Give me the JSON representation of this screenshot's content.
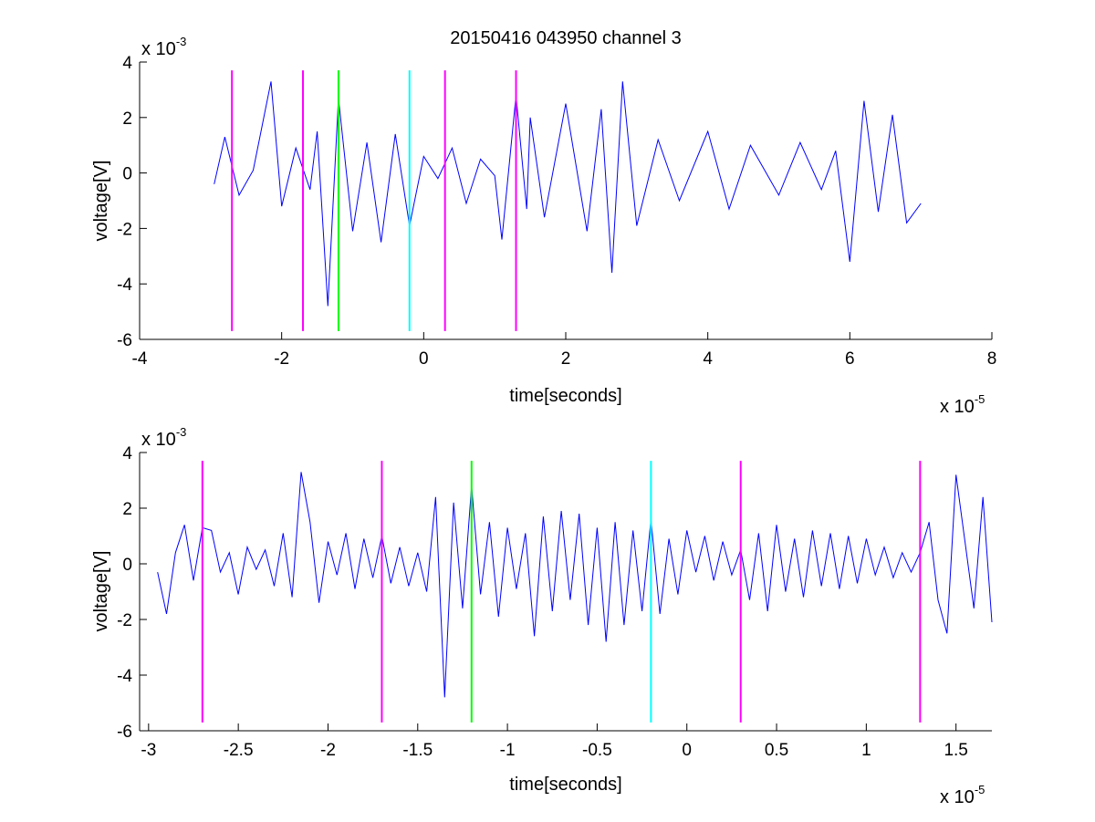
{
  "figure": {
    "title": "20150416 043950 channel 3",
    "signal_color": "#0000ff",
    "marker_colors": {
      "magenta": "#ff00ff",
      "green": "#00ff00",
      "cyan": "#00ffff"
    }
  },
  "chart_data": [
    {
      "type": "line",
      "title": "20150416 043950 channel 3",
      "xlabel": "time[seconds]",
      "ylabel": "voltage[V]",
      "xlim": [
        -4e-05,
        8e-05
      ],
      "ylim": [
        -0.006,
        0.004
      ],
      "x_ticks": [
        -4e-05,
        -2e-05,
        0,
        2e-05,
        4e-05,
        6e-05,
        8e-05
      ],
      "x_tick_labels": [
        "-4",
        "-2",
        "0",
        "2",
        "4",
        "6",
        "8"
      ],
      "y_ticks": [
        -0.006,
        -0.004,
        -0.002,
        0,
        0.002,
        0.004
      ],
      "y_tick_labels": [
        "-6",
        "-4",
        "-2",
        "0",
        "2",
        "4"
      ],
      "x_exponent": {
        "base": "x 10",
        "power": "-5"
      },
      "y_exponent": {
        "base": "x 10",
        "power": "-3"
      },
      "grid": false,
      "series": [
        {
          "color": "#0000ff",
          "x": [
            -2.95e-05,
            -2.8e-05,
            -2.6e-05,
            -2.4e-05,
            -2.15e-05,
            -2e-05,
            -1.8e-05,
            -1.6e-05,
            -1.5e-05,
            -1.35e-05,
            -1.2e-05,
            -1e-05,
            -8e-06,
            -6e-06,
            -4e-06,
            -2e-06,
            0,
            2e-06,
            4e-06,
            6e-06,
            8e-06,
            1e-05,
            1.1e-05,
            1.3e-05,
            1.45e-05,
            1.5e-05,
            1.7e-05,
            2e-05,
            2.3e-05,
            2.5e-05,
            2.65e-05,
            2.8e-05,
            3e-05,
            3.3e-05,
            3.6e-05,
            4e-05,
            4.3e-05,
            4.6e-05,
            5e-05,
            5.3e-05,
            5.6e-05,
            5.8e-05,
            6e-05,
            6.2e-05,
            6.4e-05,
            6.6e-05,
            6.8e-05,
            7e-05
          ],
          "y": [
            -0.0004,
            0.0013,
            -0.0008,
            0.0001,
            0.0033,
            -0.0012,
            0.0009,
            -0.0006,
            0.0015,
            -0.0048,
            0.0027,
            -0.0021,
            0.0011,
            -0.0025,
            0.0014,
            -0.0019,
            0.0006,
            -0.0002,
            0.0009,
            -0.0011,
            0.0005,
            -0.0001,
            -0.0024,
            0.0028,
            -0.0013,
            0.002,
            -0.0016,
            0.0025,
            -0.0021,
            0.0023,
            -0.0036,
            0.0033,
            -0.0019,
            0.0012,
            -0.001,
            0.0015,
            -0.0013,
            0.001,
            -0.0008,
            0.0011,
            -0.0006,
            0.0008,
            -0.0032,
            0.0026,
            -0.0014,
            0.0021,
            -0.0018,
            -0.0011
          ]
        }
      ],
      "vertical_markers": [
        {
          "x": -2.7e-05,
          "color": "#ff00ff"
        },
        {
          "x": -1.7e-05,
          "color": "#ff00ff"
        },
        {
          "x": -1.2e-05,
          "color": "#00ff00"
        },
        {
          "x": -2e-06,
          "color": "#00ffff"
        },
        {
          "x": 3e-06,
          "color": "#ff00ff"
        },
        {
          "x": 1.3e-05,
          "color": "#ff00ff"
        }
      ],
      "marker_span": [
        -0.0057,
        0.0037
      ]
    },
    {
      "type": "line",
      "title": "",
      "xlabel": "time[seconds]",
      "ylabel": "voltage[V]",
      "xlim": [
        -3.05e-05,
        1.7e-05
      ],
      "ylim": [
        -0.006,
        0.004
      ],
      "x_ticks": [
        -3e-05,
        -2.5e-05,
        -2e-05,
        -1.5e-05,
        -1e-05,
        -5e-06,
        0,
        5e-06,
        1e-05,
        1.5e-05
      ],
      "x_tick_labels": [
        "-3",
        "-2.5",
        "-2",
        "-1.5",
        "-1",
        "-0.5",
        "0",
        "0.5",
        "1",
        "1.5"
      ],
      "y_ticks": [
        -0.006,
        -0.004,
        -0.002,
        0,
        0.002,
        0.004
      ],
      "y_tick_labels": [
        "-6",
        "-4",
        "-2",
        "0",
        "2",
        "4"
      ],
      "x_exponent": {
        "base": "x 10",
        "power": "-5"
      },
      "y_exponent": {
        "base": "x 10",
        "power": "-3"
      },
      "grid": false,
      "series": [
        {
          "color": "#0000ff",
          "x": [
            -2.95e-05,
            -2.9e-05,
            -2.85e-05,
            -2.8e-05,
            -2.75e-05,
            -2.7e-05,
            -2.65e-05,
            -2.6e-05,
            -2.55e-05,
            -2.5e-05,
            -2.45e-05,
            -2.4e-05,
            -2.35e-05,
            -2.3e-05,
            -2.25e-05,
            -2.2e-05,
            -2.15e-05,
            -2.1e-05,
            -2.05e-05,
            -2e-05,
            -1.95e-05,
            -1.9e-05,
            -1.85e-05,
            -1.8e-05,
            -1.75e-05,
            -1.7e-05,
            -1.65e-05,
            -1.6e-05,
            -1.55e-05,
            -1.5e-05,
            -1.45e-05,
            -1.4e-05,
            -1.35e-05,
            -1.3e-05,
            -1.25e-05,
            -1.2e-05,
            -1.15e-05,
            -1.1e-05,
            -1.05e-05,
            -1e-05,
            -9.5e-06,
            -9e-06,
            -8.5e-06,
            -8e-06,
            -7.5e-06,
            -7e-06,
            -6.5e-06,
            -6e-06,
            -5.5e-06,
            -5e-06,
            -4.5e-06,
            -4e-06,
            -3.5e-06,
            -3e-06,
            -2.5e-06,
            -2e-06,
            -1.5e-06,
            -1e-06,
            -5e-07,
            0,
            5e-07,
            1e-06,
            1.5e-06,
            2e-06,
            2.5e-06,
            3e-06,
            3.5e-06,
            4e-06,
            4.5e-06,
            5e-06,
            5.5e-06,
            6e-06,
            6.5e-06,
            7e-06,
            7.5e-06,
            8e-06,
            8.5e-06,
            9e-06,
            9.5e-06,
            1e-05,
            1.05e-05,
            1.1e-05,
            1.15e-05,
            1.2e-05,
            1.25e-05,
            1.3e-05,
            1.35e-05,
            1.4e-05,
            1.45e-05,
            1.5e-05,
            1.55e-05,
            1.6e-05,
            1.65e-05,
            1.7e-05
          ],
          "y": [
            -0.0003,
            -0.0018,
            0.0004,
            0.0014,
            -0.0006,
            0.0013,
            0.0012,
            -0.0003,
            0.0004,
            -0.0011,
            0.0006,
            -0.0002,
            0.0005,
            -0.0008,
            0.0011,
            -0.0012,
            0.0033,
            0.0015,
            -0.0014,
            0.0008,
            -0.0004,
            0.0011,
            -0.0009,
            0.0009,
            -0.0005,
            0.001,
            -0.0007,
            0.0006,
            -0.0008,
            0.0004,
            -0.001,
            0.0024,
            -0.0048,
            0.0022,
            -0.0016,
            0.0028,
            -0.0011,
            0.0015,
            -0.0019,
            0.0013,
            -0.0009,
            0.0011,
            -0.0026,
            0.0017,
            -0.0017,
            0.0019,
            -0.0013,
            0.0018,
            -0.0022,
            0.0013,
            -0.0028,
            0.0015,
            -0.0022,
            0.0012,
            -0.0017,
            0.0016,
            -0.0018,
            0.0009,
            -0.0011,
            0.0012,
            -0.0003,
            0.001,
            -0.0006,
            0.0008,
            -0.0004,
            0.0005,
            -0.0013,
            0.0011,
            -0.0017,
            0.0014,
            -0.001,
            0.0009,
            -0.0012,
            0.0012,
            -0.0008,
            0.0011,
            -0.0009,
            0.001,
            -0.0007,
            0.0009,
            -0.0004,
            0.0006,
            -0.0005,
            0.0004,
            -0.0003,
            0.0004,
            0.0015,
            -0.0013,
            -0.0025,
            0.0032,
            0.0008,
            -0.0016,
            0.0024,
            -0.0021
          ]
        }
      ],
      "vertical_markers": [
        {
          "x": -2.7e-05,
          "color": "#ff00ff"
        },
        {
          "x": -1.7e-05,
          "color": "#ff00ff"
        },
        {
          "x": -1.2e-05,
          "color": "#00ff00"
        },
        {
          "x": -2e-06,
          "color": "#00ffff"
        },
        {
          "x": 3e-06,
          "color": "#ff00ff"
        },
        {
          "x": 1.3e-05,
          "color": "#ff00ff"
        }
      ],
      "marker_span": [
        -0.0057,
        0.0037
      ]
    }
  ]
}
